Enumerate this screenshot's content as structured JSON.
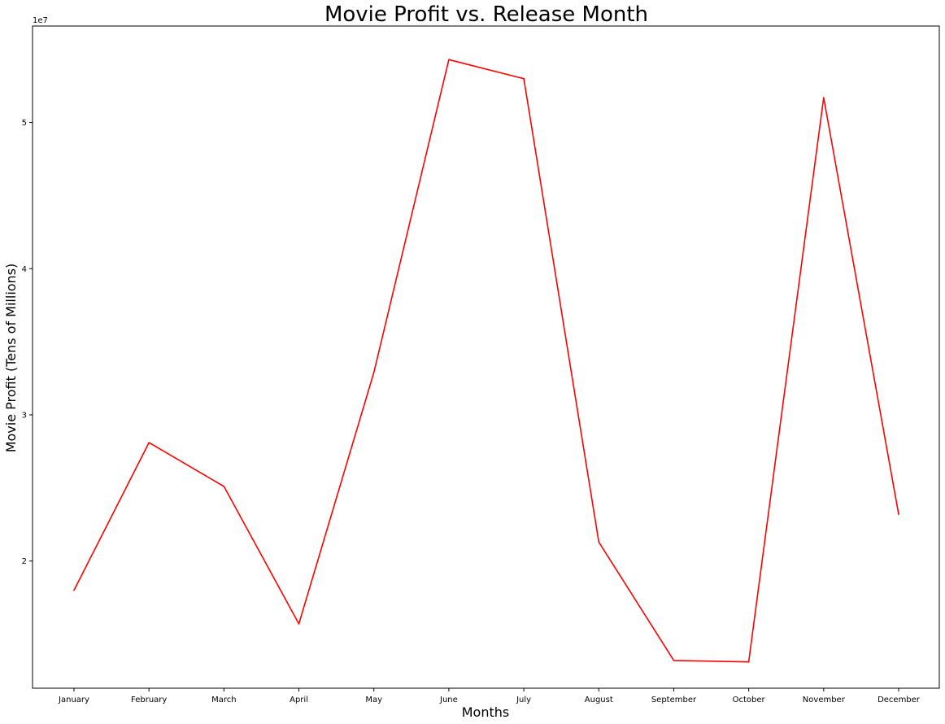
{
  "chart_data": {
    "type": "line",
    "title": "Movie Profit vs. Release Month",
    "xlabel": "Months",
    "ylabel": "Movie Profit (Tens of Millions)",
    "y_offset_label": "1e7",
    "y_scale": 10000000,
    "categories": [
      "January",
      "February",
      "March",
      "April",
      "May",
      "June",
      "July",
      "August",
      "September",
      "October",
      "November",
      "December"
    ],
    "series": [
      {
        "values": [
          18000000,
          28100000,
          25100000,
          15700000,
          32900000,
          54300000,
          53000000,
          21300000,
          13200000,
          13100000,
          51700000,
          23200000
        ],
        "color": "#ff0000"
      }
    ],
    "y_ticks": [
      20000000,
      30000000,
      40000000,
      50000000
    ],
    "y_tick_labels": [
      "2",
      "3",
      "4",
      "5"
    ],
    "ylim": [
      11300000,
      56600000
    ],
    "grid": false,
    "legend": false
  }
}
